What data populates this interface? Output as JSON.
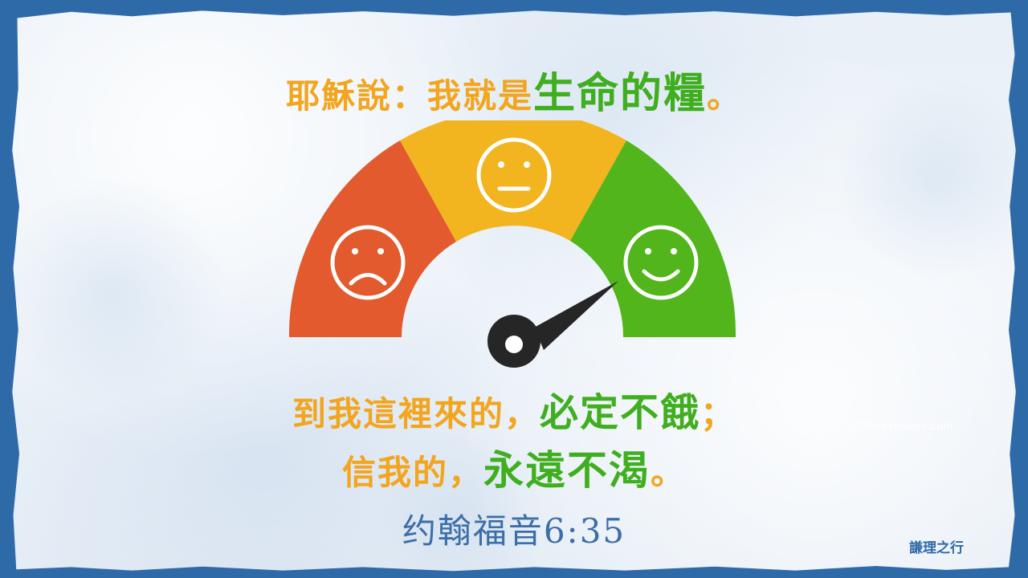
{
  "verse": {
    "line1_intro": "耶穌說：我就是",
    "line1_highlight": "生命的糧",
    "line1_end": "。",
    "line2_intro": "到我這裡來的，",
    "line2_highlight": "必定不餓",
    "line2_end": "；",
    "line3_intro": "信我的，",
    "line3_highlight": "永遠不渴",
    "line3_end": "。",
    "reference": "约翰福音6:35"
  },
  "watermark": "123freevectors.com",
  "signature": "謙理之行",
  "gauge": {
    "segments": [
      {
        "name": "sad",
        "color": "#e25a2e",
        "icon": "sad-face-icon"
      },
      {
        "name": "neutral",
        "color": "#f2b41f",
        "icon": "neutral-face-icon"
      },
      {
        "name": "happy",
        "color": "#52b51b",
        "icon": "happy-face-icon"
      }
    ],
    "needle_level": "happy"
  },
  "colors": {
    "accent_orange": "#f2a51d",
    "accent_green": "#3fae1f",
    "reference_blue": "#3c6ea8",
    "frame_blue": "#2f6aa8"
  }
}
